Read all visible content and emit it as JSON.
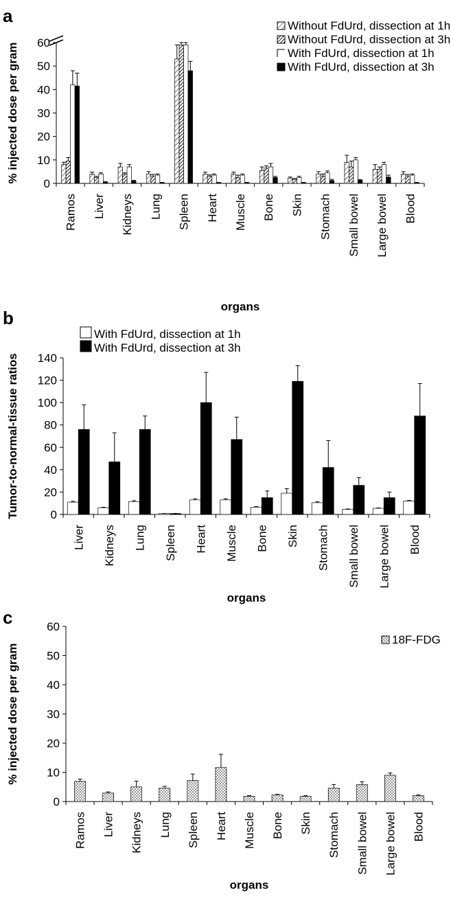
{
  "colors": {
    "ink": "#000000",
    "paper": "#ffffff"
  },
  "chart_data": [
    {
      "panel": "a",
      "type": "bar",
      "xlabel": "organs",
      "ylabel": "% injected dose  per gram",
      "ylim": [
        0,
        60
      ],
      "yticks": [
        0,
        10,
        20,
        30,
        40,
        50,
        60
      ],
      "axis_break": true,
      "legend_position": "top-right",
      "categories": [
        "Ramos",
        "Liver",
        "Kidneys",
        "Lung",
        "Spleen",
        "Heart",
        "Muscle",
        "Bone",
        "Skin",
        "Stomach",
        "Small bowel",
        "Large bowel",
        "Blood"
      ],
      "series": [
        {
          "name": "Without FdUrd, dissection at 1h",
          "pattern": "hatch-light",
          "values": [
            8,
            4,
            7,
            4,
            53,
            4,
            4,
            5.5,
            2.2,
            4,
            9,
            6,
            4
          ],
          "errors": [
            1,
            0.8,
            1.5,
            1,
            6,
            0.8,
            0.8,
            1.5,
            0.5,
            1,
            3,
            2,
            1
          ]
        },
        {
          "name": "Without FdUrd, dissection at 3h",
          "pattern": "hatch-dark",
          "values": [
            9.5,
            2.5,
            4,
            3,
            59,
            3,
            2.5,
            6.5,
            1.7,
            3,
            7,
            6,
            3
          ],
          "errors": [
            1.5,
            0.5,
            0.5,
            0.8,
            5,
            0.6,
            1,
            1,
            0.4,
            1,
            2.5,
            1,
            0.8
          ]
        },
        {
          "name": "With FdUrd, dissection at 1h",
          "pattern": "white",
          "values": [
            42,
            4,
            7,
            3.5,
            59,
            3.5,
            3.5,
            7,
            2.5,
            4.5,
            10,
            8,
            3.5
          ],
          "errors": [
            6,
            0.5,
            1,
            0.5,
            5,
            0.5,
            0.5,
            1.5,
            0.5,
            0.8,
            1,
            1,
            0.5
          ]
        },
        {
          "name": "With FdUrd, dissection at 3h",
          "pattern": "black",
          "values": [
            41.5,
            0.5,
            1,
            0.3,
            48,
            0.3,
            0.3,
            2.5,
            0.3,
            1.2,
            1.3,
            2.7,
            0.3
          ],
          "errors": [
            5.5,
            0.2,
            0.3,
            0.1,
            4,
            0.1,
            0.1,
            0.5,
            0.1,
            0.5,
            0.3,
            0.8,
            0.1
          ]
        }
      ]
    },
    {
      "panel": "b",
      "type": "bar",
      "xlabel": "organs",
      "ylabel": "Tumor-to-normal-tissue ratios",
      "ylim": [
        0,
        140
      ],
      "yticks": [
        0,
        20,
        40,
        60,
        80,
        100,
        120,
        140
      ],
      "legend_position": "top-left",
      "categories": [
        "Liver",
        "Kidneys",
        "Lung",
        "Spleen",
        "Heart",
        "Muscle",
        "Bone",
        "Skin",
        "Stomach",
        "Small bowel",
        "Large bowel",
        "Blood"
      ],
      "series": [
        {
          "name": "With FdUrd, dissection at 1h",
          "pattern": "white",
          "values": [
            11,
            6,
            11.5,
            0.8,
            13,
            13,
            6.5,
            19,
            10.5,
            4.5,
            5.5,
            12
          ],
          "errors": [
            0.7,
            0.4,
            0.8,
            0.1,
            1,
            1,
            0.5,
            4,
            0.8,
            0.4,
            0.3,
            0.5
          ]
        },
        {
          "name": "With FdUrd, dissection at 3h",
          "pattern": "black",
          "values": [
            76,
            47,
            76,
            0.8,
            100,
            67,
            15,
            119,
            42,
            26,
            15,
            88
          ],
          "errors": [
            22,
            26,
            12,
            0.1,
            27,
            20,
            6,
            14,
            24,
            7,
            5,
            29
          ]
        }
      ]
    },
    {
      "panel": "c",
      "type": "bar",
      "xlabel": "organs",
      "ylabel": "% injected dose  per gram",
      "ylim": [
        0,
        60
      ],
      "yticks": [
        0,
        10,
        20,
        30,
        40,
        50,
        60
      ],
      "legend_position": "top-right",
      "categories": [
        "Ramos",
        "Liver",
        "Kidneys",
        "Lung",
        "Spleen",
        "Heart",
        "Muscle",
        "Bone",
        "Skin",
        "Stomach",
        "Small bowel",
        "Large bowel",
        "Blood"
      ],
      "series": [
        {
          "name": "18F-FDG",
          "pattern": "dotted",
          "values": [
            6.9,
            2.9,
            5,
            4.6,
            7.2,
            11.7,
            1.8,
            2.3,
            1.8,
            4.6,
            5.8,
            9,
            2
          ],
          "errors": [
            0.8,
            0.4,
            2,
            0.6,
            2.2,
            4.5,
            0.2,
            0.2,
            0.2,
            1.2,
            1,
            0.8,
            0.3
          ]
        }
      ]
    }
  ]
}
